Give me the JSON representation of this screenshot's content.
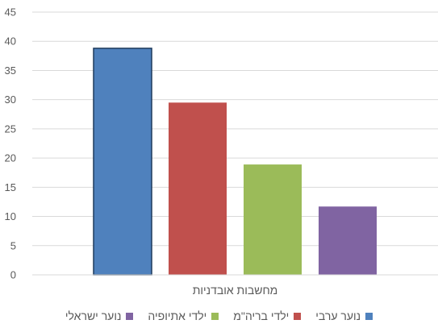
{
  "chart_data": {
    "type": "bar",
    "categories": [
      "מחשבות אובדניות"
    ],
    "series": [
      {
        "name": "נוער ערבי",
        "values": [
          38.8
        ],
        "color": "#4F81BD"
      },
      {
        "name": "ילדי בריה\"מ",
        "values": [
          29.5
        ],
        "color": "#C0504D"
      },
      {
        "name": "ילדי אתיופיה",
        "values": [
          18.9
        ],
        "color": "#9BBB59"
      },
      {
        "name": "נוער ישראלי",
        "values": [
          11.7
        ],
        "color": "#8064A2"
      }
    ],
    "title": "",
    "xlabel": "",
    "ylabel": "",
    "ylim": [
      0,
      45
    ],
    "yticks": [
      0,
      5,
      10,
      15,
      20,
      25,
      30,
      35,
      40,
      45
    ],
    "grid": true,
    "legend_position": "bottom"
  }
}
